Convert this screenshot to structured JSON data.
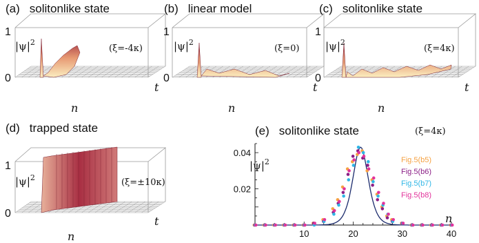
{
  "panels": {
    "a": {
      "label": "(a)",
      "title": "solitonlike state",
      "ylabel": "|ψ|",
      "ylabel_sup": "2",
      "param": "(ξ=-4κ)",
      "zmax": "1",
      "zmin": "0",
      "xaxis": "n",
      "taxis": "t"
    },
    "b": {
      "label": "(b)",
      "title": "linear model",
      "ylabel": "|ψ|",
      "ylabel_sup": "2",
      "param": "(ξ=0)",
      "zmax": "1",
      "zmin": "0",
      "xaxis": "n",
      "taxis": "t"
    },
    "c": {
      "label": "(c)",
      "title": "solitonlike state",
      "ylabel": "|ψ|",
      "ylabel_sup": "2",
      "param": "(ξ=4κ)",
      "zmax": "1",
      "zmin": "0",
      "xaxis": "n",
      "taxis": "t"
    },
    "d": {
      "label": "(d)",
      "title": "trapped state",
      "ylabel": "|ψ|",
      "ylabel_sup": "2",
      "param": "(ξ=±10κ)",
      "zmax": "1",
      "zmin": "0",
      "xaxis": "n",
      "taxis": "t"
    },
    "e": {
      "label": "(e)",
      "title": "solitonlike state",
      "param": "(ξ=4κ)",
      "ylabel": "|ψ|",
      "ylabel_sup": "2",
      "xaxis": "n"
    }
  },
  "chart_data": {
    "type": "scatter",
    "title": "solitonlike state",
    "xlabel": "n",
    "ylabel": "|ψ|^2",
    "xlim": [
      0,
      40
    ],
    "ylim": [
      0,
      0.045
    ],
    "xticks": [
      "10",
      "20",
      "30",
      "40"
    ],
    "yticks": [
      "0.02",
      "0.04"
    ],
    "legend_position": "right",
    "curve": {
      "center": 21.5,
      "width": 2.1,
      "peak": 0.043,
      "color": "#1a2a6c"
    },
    "series": [
      {
        "name": "Fig.5(b5)",
        "color": "#f5a243",
        "x": [
          0,
          2,
          4,
          6,
          8,
          10,
          12,
          14,
          16,
          17,
          18,
          19,
          20,
          21,
          22,
          23,
          24,
          25,
          26,
          27,
          28,
          30,
          32,
          34,
          36,
          38,
          40
        ],
        "y": [
          0,
          0,
          0,
          0,
          0,
          0,
          0.001,
          0.003,
          0.009,
          0.014,
          0.021,
          0.031,
          0.035,
          0.039,
          0.041,
          0.03,
          0.025,
          0.017,
          0.01,
          0.005,
          0.003,
          0.001,
          0,
          0,
          0,
          0,
          0
        ]
      },
      {
        "name": "Fig.5(b6)",
        "color": "#8b1f86",
        "x": [
          0,
          2,
          4,
          6,
          8,
          10,
          12,
          14,
          16,
          17,
          18,
          19,
          20,
          21,
          22,
          23,
          24,
          25,
          26,
          27,
          28,
          30,
          32,
          34,
          36,
          38,
          40
        ],
        "y": [
          0,
          0,
          0,
          0,
          0,
          0,
          0.001,
          0.002,
          0.007,
          0.012,
          0.018,
          0.028,
          0.038,
          0.041,
          0.037,
          0.033,
          0.022,
          0.014,
          0.009,
          0.004,
          0.002,
          0.001,
          0,
          0,
          0,
          0,
          0
        ]
      },
      {
        "name": "Fig.5(b7)",
        "color": "#2fb6e6",
        "x": [
          0,
          2,
          4,
          6,
          8,
          10,
          12,
          14,
          16,
          17,
          18,
          19,
          20,
          21,
          22,
          23,
          24,
          25,
          26,
          27,
          28,
          30,
          32,
          34,
          36,
          38,
          40
        ],
        "y": [
          0,
          0,
          0,
          0,
          0,
          0,
          0,
          0.002,
          0.006,
          0.011,
          0.016,
          0.025,
          0.033,
          0.043,
          0.04,
          0.035,
          0.024,
          0.016,
          0.011,
          0.006,
          0.002,
          0.001,
          0,
          0,
          0,
          0,
          0
        ]
      },
      {
        "name": "Fig.5(b8)",
        "color": "#e2339b",
        "x": [
          0,
          2,
          4,
          6,
          8,
          10,
          12,
          14,
          16,
          17,
          18,
          19,
          20,
          21,
          22,
          23,
          24,
          25,
          26,
          27,
          28,
          30,
          32,
          34,
          36,
          38,
          40
        ],
        "y": [
          0,
          0,
          0,
          0,
          0,
          0,
          0.001,
          0.003,
          0.008,
          0.013,
          0.02,
          0.03,
          0.036,
          0.04,
          0.038,
          0.031,
          0.026,
          0.018,
          0.012,
          0.006,
          0.003,
          0.001,
          0,
          0,
          0,
          0,
          0
        ]
      }
    ]
  }
}
